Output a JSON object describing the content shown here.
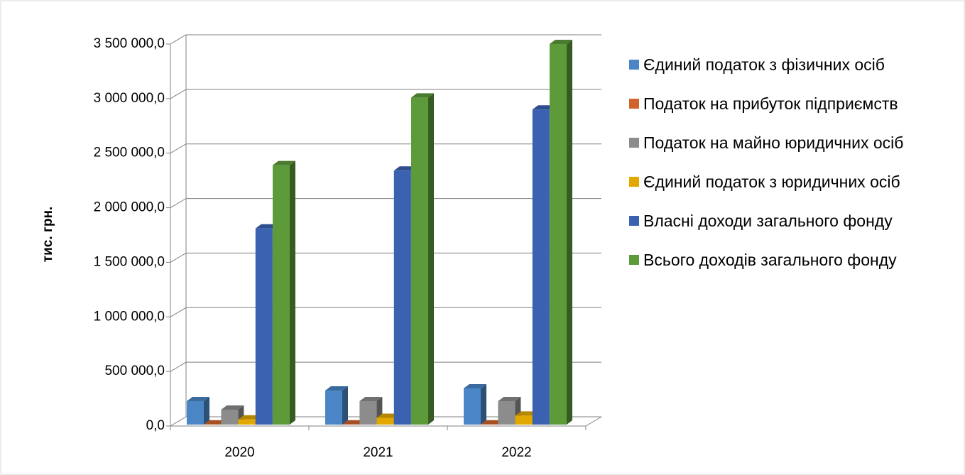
{
  "chart_data": {
    "type": "bar",
    "y_label": "тис. грн.",
    "categories": [
      "2020",
      "2021",
      "2022"
    ],
    "series": [
      {
        "name": "Єдиний податок з фізичних осіб",
        "color": "#4a86c5",
        "values": [
          228000,
          325000,
          345000
        ]
      },
      {
        "name": "Податок на прибуток підприємств",
        "color": "#d0632b",
        "values": [
          15000,
          15000,
          15000
        ]
      },
      {
        "name": "Податок на майно юридичних осіб",
        "color": "#8c8c8c",
        "values": [
          150000,
          228000,
          228000
        ]
      },
      {
        "name": "Єдиний податок з юридичних осіб",
        "color": "#e3a800",
        "values": [
          60000,
          75000,
          95000
        ]
      },
      {
        "name": "Власні доходи загального фонду",
        "color": "#3a62b0",
        "values": [
          1810000,
          2340000,
          2900000
        ]
      },
      {
        "name": "Всього доходів загального фонду",
        "color": "#5c9a3a",
        "values": [
          2390000,
          3010000,
          3500000
        ]
      }
    ],
    "ylim": [
      0,
      3500000
    ],
    "yticks": [
      {
        "value": 0,
        "label": "0,0"
      },
      {
        "value": 500000,
        "label": "500 000,0"
      },
      {
        "value": 1000000,
        "label": "1 000 000,0"
      },
      {
        "value": 1500000,
        "label": "1 500 000,0"
      },
      {
        "value": 2000000,
        "label": "2 000 000,0"
      },
      {
        "value": 2500000,
        "label": "2 500 000,0"
      },
      {
        "value": 3000000,
        "label": "3 000 000,0"
      },
      {
        "value": 3500000,
        "label": "3 500 000,0"
      }
    ],
    "grid": true,
    "legend": "right"
  }
}
